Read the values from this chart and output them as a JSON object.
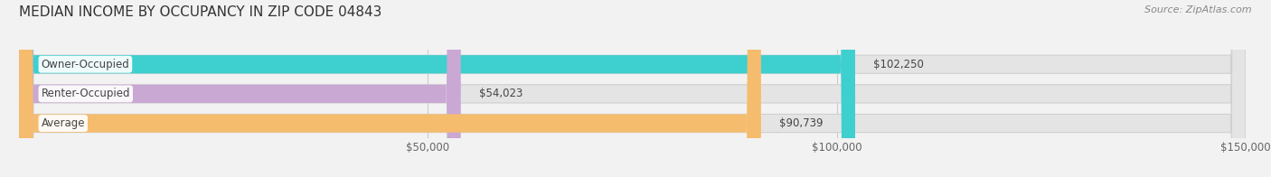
{
  "title": "MEDIAN INCOME BY OCCUPANCY IN ZIP CODE 04843",
  "source": "Source: ZipAtlas.com",
  "categories": [
    "Owner-Occupied",
    "Renter-Occupied",
    "Average"
  ],
  "values": [
    102250,
    54023,
    90739
  ],
  "labels": [
    "$102,250",
    "$54,023",
    "$90,739"
  ],
  "bar_colors": [
    "#3ecfcf",
    "#c9a8d4",
    "#f5bc6e"
  ],
  "xlim_max": 150000,
  "xticks": [
    50000,
    100000,
    150000
  ],
  "xtick_labels": [
    "$50,000",
    "$100,000",
    "$150,000"
  ],
  "title_fontsize": 11,
  "label_fontsize": 8.5,
  "source_fontsize": 8,
  "bar_height": 0.62,
  "background_color": "#f2f2f2",
  "bar_bg_color": "#e4e4e4",
  "grid_color": "#cccccc",
  "text_color": "#444444",
  "label_bg_color": "#ffffff"
}
